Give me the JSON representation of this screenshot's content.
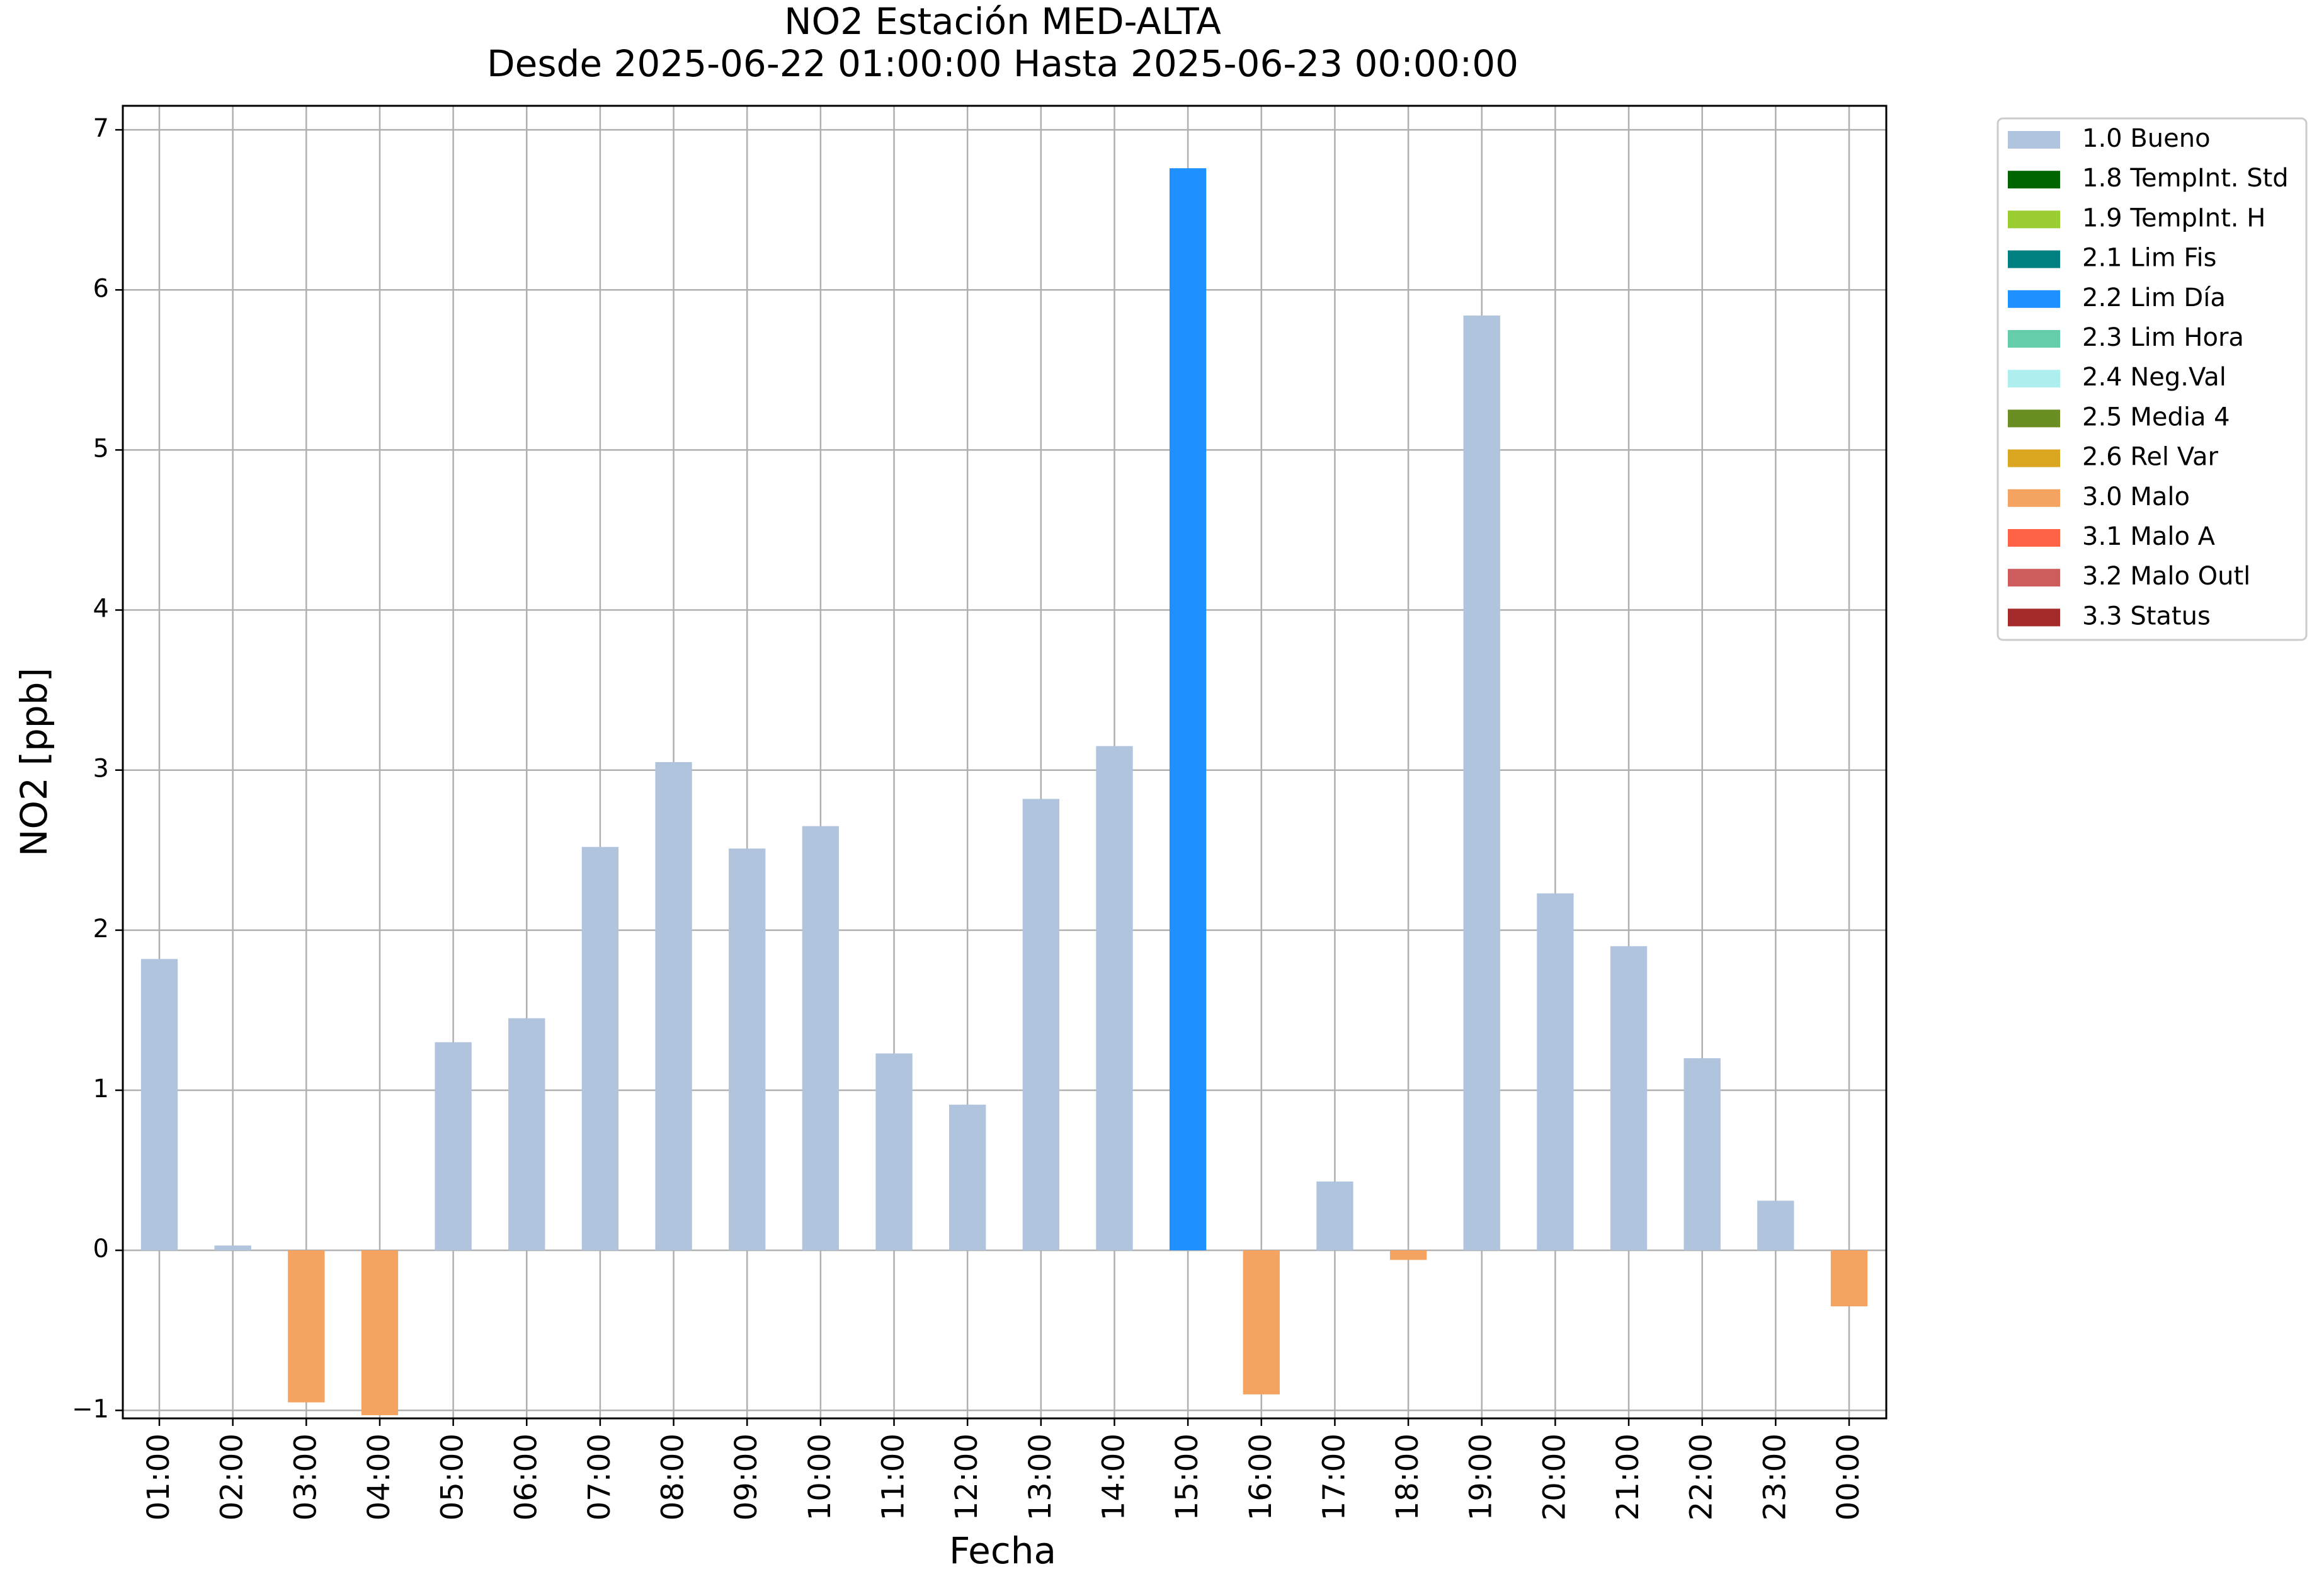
{
  "chart_data": {
    "type": "bar",
    "title": "NO2 Estación MED-ALTA",
    "subtitle": "Desde 2025-06-22 01:00:00 Hasta 2025-06-23 00:00:00",
    "xlabel": "Fecha",
    "ylabel": "NO2 [ppb]",
    "ylim": [
      -1.05,
      7.15
    ],
    "yticks": [
      -1,
      0,
      1,
      2,
      3,
      4,
      5,
      6,
      7
    ],
    "grid": true,
    "legend_position": "outside-right",
    "categories": [
      "01:00",
      "02:00",
      "03:00",
      "04:00",
      "05:00",
      "06:00",
      "07:00",
      "08:00",
      "09:00",
      "10:00",
      "11:00",
      "12:00",
      "13:00",
      "14:00",
      "15:00",
      "16:00",
      "17:00",
      "18:00",
      "19:00",
      "20:00",
      "21:00",
      "22:00",
      "23:00",
      "00:00"
    ],
    "values": [
      1.82,
      0.03,
      -0.95,
      -1.03,
      1.3,
      1.45,
      2.52,
      3.05,
      2.51,
      2.65,
      1.23,
      0.91,
      2.82,
      3.15,
      6.76,
      -0.9,
      0.43,
      -0.06,
      5.84,
      2.23,
      1.9,
      1.2,
      0.31,
      -0.35
    ],
    "flags": [
      "1.0 Bueno",
      "1.0 Bueno",
      "3.0 Malo",
      "3.0 Malo",
      "1.0 Bueno",
      "1.0 Bueno",
      "1.0 Bueno",
      "1.0 Bueno",
      "1.0 Bueno",
      "1.0 Bueno",
      "1.0 Bueno",
      "1.0 Bueno",
      "1.0 Bueno",
      "1.0 Bueno",
      "2.2 Lim Día",
      "3.0 Malo",
      "1.0 Bueno",
      "3.0 Malo",
      "1.0 Bueno",
      "1.0 Bueno",
      "1.0 Bueno",
      "1.0 Bueno",
      "1.0 Bueno",
      "3.0 Malo"
    ],
    "legend": [
      {
        "label": "1.0 Bueno",
        "color": "#b0c4de"
      },
      {
        "label": "1.8 TempInt. Std",
        "color": "#006400"
      },
      {
        "label": "1.9 TempInt. H",
        "color": "#9acd32"
      },
      {
        "label": "2.1 Lim Fis",
        "color": "#008080"
      },
      {
        "label": "2.2 Lim Día",
        "color": "#1e90ff"
      },
      {
        "label": "2.3 Lim Hora",
        "color": "#66cdaa"
      },
      {
        "label": "2.4 Neg.Val",
        "color": "#afeeee"
      },
      {
        "label": "2.5 Media 4",
        "color": "#6b8e23"
      },
      {
        "label": "2.6 Rel Var",
        "color": "#daa520"
      },
      {
        "label": "3.0 Malo",
        "color": "#f4a460"
      },
      {
        "label": "3.1 Malo A",
        "color": "#ff6347"
      },
      {
        "label": "3.2 Malo Outl",
        "color": "#cd5c5c"
      },
      {
        "label": "3.3 Status",
        "color": "#a52a2a"
      }
    ]
  }
}
